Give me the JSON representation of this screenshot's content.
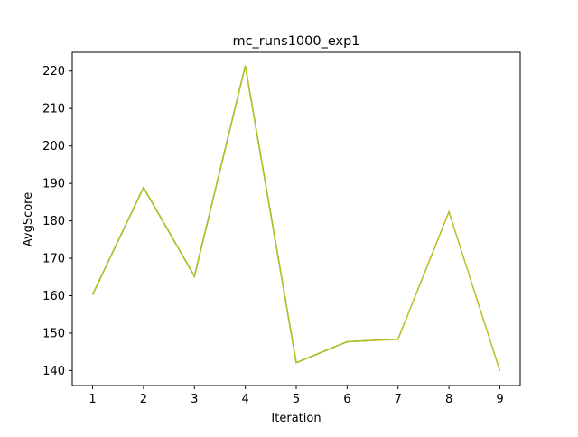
{
  "chart_data": {
    "type": "line",
    "title": "mc_runs1000_exp1",
    "xlabel": "Iteration",
    "ylabel": "AvgScore",
    "x": [
      1,
      2,
      3,
      4,
      5,
      6,
      7,
      8,
      9
    ],
    "xticks": [
      1,
      2,
      3,
      4,
      5,
      6,
      7,
      8,
      9
    ],
    "yticks": [
      140,
      150,
      160,
      170,
      180,
      190,
      200,
      210,
      220
    ],
    "xlim": [
      0.6,
      9.4
    ],
    "ylim": [
      136,
      225
    ],
    "grid": false,
    "series": [
      {
        "color": "#2ca02c",
        "values": [
          160.3,
          188.9,
          165.2,
          221.4,
          142.1,
          147.7,
          148.4,
          null,
          null
        ]
      },
      {
        "color": "#bcbd22",
        "values": [
          160.3,
          188.9,
          165.2,
          221.4,
          142.1,
          147.7,
          148.4,
          182.4,
          139.9
        ]
      }
    ]
  }
}
